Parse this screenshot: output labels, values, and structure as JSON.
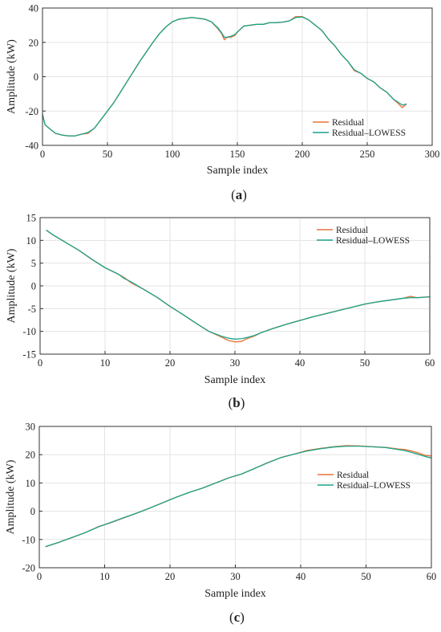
{
  "chart_data": [
    {
      "type": "line",
      "caption_pre": "(",
      "caption_letter": "a",
      "caption_post": ")",
      "xlabel": "Sample index",
      "ylabel": "Amplitude (kW)",
      "xlim": [
        0,
        300
      ],
      "ylim": [
        -40,
        40
      ],
      "xticks": [
        0,
        50,
        100,
        150,
        200,
        250,
        300
      ],
      "yticks": [
        -40,
        -20,
        0,
        20,
        40
      ],
      "grid": true,
      "legend_position": "bottom-right",
      "series": [
        {
          "name": "Residual",
          "color": "#e8743b",
          "x": [
            0,
            2,
            5,
            10,
            15,
            20,
            25,
            30,
            35,
            40,
            45,
            50,
            55,
            60,
            65,
            70,
            75,
            80,
            85,
            90,
            95,
            100,
            105,
            110,
            115,
            120,
            125,
            130,
            135,
            138,
            140,
            142,
            145,
            148,
            150,
            155,
            160,
            165,
            170,
            175,
            180,
            185,
            190,
            195,
            200,
            205,
            210,
            215,
            220,
            225,
            230,
            235,
            240,
            245,
            250,
            255,
            260,
            265,
            270,
            273,
            275,
            277,
            280
          ],
          "values": [
            -22,
            -28,
            -30,
            -33,
            -34,
            -34.5,
            -34.5,
            -33.5,
            -33,
            -30,
            -25,
            -20,
            -15,
            -9,
            -3,
            3,
            9,
            14.5,
            20,
            25,
            29,
            32,
            33.5,
            34,
            34.5,
            34,
            33.5,
            32,
            28,
            25,
            21.5,
            23,
            23,
            24,
            26,
            29.5,
            30,
            30.5,
            30.5,
            31.5,
            31.5,
            31.8,
            32.5,
            35,
            35,
            33,
            30,
            27,
            22,
            18,
            13,
            9,
            3.5,
            2,
            -1,
            -3,
            -6.5,
            -9,
            -13,
            -15,
            -16.5,
            -18,
            -16
          ]
        },
        {
          "name": "Residual–LOWESS",
          "color": "#1aa489",
          "x": [
            0,
            2,
            5,
            10,
            15,
            20,
            25,
            30,
            35,
            40,
            45,
            50,
            55,
            60,
            65,
            70,
            75,
            80,
            85,
            90,
            95,
            100,
            105,
            110,
            115,
            120,
            125,
            130,
            135,
            138,
            140,
            142,
            145,
            148,
            150,
            155,
            160,
            165,
            170,
            175,
            180,
            185,
            190,
            195,
            200,
            205,
            210,
            215,
            220,
            225,
            230,
            235,
            240,
            245,
            250,
            255,
            260,
            265,
            270,
            273,
            275,
            277,
            280
          ],
          "values": [
            -22,
            -28,
            -30,
            -33,
            -34,
            -34.5,
            -34.5,
            -33.5,
            -32.5,
            -30,
            -25,
            -20,
            -15,
            -9,
            -3,
            3,
            9,
            14.5,
            20,
            25,
            29,
            32,
            33.5,
            34,
            34.5,
            34,
            33.5,
            32,
            28.5,
            25.5,
            23,
            23,
            23.5,
            24.5,
            26,
            29.5,
            30,
            30.5,
            30.5,
            31.5,
            31.5,
            31.8,
            32.5,
            34.5,
            34.8,
            33,
            30,
            27,
            22,
            18,
            13,
            9,
            4,
            2,
            -1,
            -3,
            -6.5,
            -9,
            -13,
            -14.5,
            -15.5,
            -16.5,
            -16
          ]
        }
      ]
    },
    {
      "type": "line",
      "caption_pre": "(",
      "caption_letter": "b",
      "caption_post": ")",
      "xlabel": "Sample index",
      "ylabel": "Amplitude (kW)",
      "xlim": [
        0,
        60
      ],
      "ylim": [
        -15,
        15
      ],
      "xticks": [
        0,
        10,
        20,
        30,
        40,
        50,
        60
      ],
      "yticks": [
        -15,
        -10,
        -5,
        0,
        5,
        10,
        15
      ],
      "grid": true,
      "legend_position": "top-right",
      "series": [
        {
          "name": "Residual",
          "color": "#e8743b",
          "x": [
            1,
            2,
            4,
            6,
            8,
            10,
            12,
            13,
            14,
            16,
            18,
            20,
            22,
            24,
            26,
            28,
            29,
            30,
            31,
            32,
            33,
            34,
            36,
            38,
            40,
            42,
            44,
            46,
            48,
            50,
            52,
            54,
            56,
            57,
            58,
            60
          ],
          "values": [
            12.2,
            11.2,
            9.5,
            7.8,
            5.8,
            4,
            2.6,
            1.8,
            0.7,
            -0.8,
            -2.5,
            -4.5,
            -6.3,
            -8.2,
            -10,
            -11.3,
            -12,
            -12.3,
            -12.2,
            -11.5,
            -11,
            -10.3,
            -9.3,
            -8.4,
            -7.6,
            -6.8,
            -6.1,
            -5.4,
            -4.7,
            -4,
            -3.5,
            -3.1,
            -2.7,
            -2.3,
            -2.6,
            -2.4
          ]
        },
        {
          "name": "Residual–LOWESS",
          "color": "#1aa489",
          "x": [
            1,
            2,
            4,
            6,
            8,
            10,
            12,
            13,
            14,
            16,
            18,
            20,
            22,
            24,
            26,
            28,
            29,
            30,
            31,
            32,
            33,
            34,
            36,
            38,
            40,
            42,
            44,
            46,
            48,
            50,
            52,
            54,
            56,
            57,
            58,
            60
          ],
          "values": [
            12.2,
            11.2,
            9.5,
            7.8,
            5.8,
            4,
            2.6,
            1.6,
            0.9,
            -0.8,
            -2.5,
            -4.5,
            -6.3,
            -8.2,
            -10,
            -11.1,
            -11.5,
            -11.7,
            -11.6,
            -11.3,
            -10.9,
            -10.3,
            -9.3,
            -8.4,
            -7.6,
            -6.8,
            -6.1,
            -5.4,
            -4.7,
            -4,
            -3.5,
            -3.1,
            -2.7,
            -2.6,
            -2.6,
            -2.4
          ]
        }
      ]
    },
    {
      "type": "line",
      "caption_pre": "(",
      "caption_letter": "c",
      "caption_post": ")",
      "xlabel": "Sample index",
      "ylabel": "Amplitude (kW)",
      "xlim": [
        0,
        60
      ],
      "ylim": [
        -20,
        30
      ],
      "xticks": [
        0,
        10,
        20,
        30,
        40,
        50,
        60
      ],
      "yticks": [
        -20,
        -10,
        0,
        10,
        20,
        30
      ],
      "grid": true,
      "legend_position": "center-right",
      "series": [
        {
          "name": "Residual",
          "color": "#e8743b",
          "x": [
            1,
            3,
            5,
            7,
            9,
            11,
            13,
            15,
            17,
            19,
            21,
            23,
            25,
            27,
            29,
            31,
            33,
            35,
            37,
            39,
            41,
            43,
            45,
            47,
            49,
            51,
            53,
            55,
            56,
            57,
            58,
            59,
            60
          ],
          "values": [
            -12.5,
            -11,
            -9.3,
            -7.6,
            -5.5,
            -4,
            -2.3,
            -0.6,
            1.2,
            3.1,
            5,
            6.7,
            8.2,
            10,
            11.8,
            13.2,
            15.2,
            17.2,
            19,
            20.2,
            21.5,
            22.2,
            22.8,
            23.2,
            23.1,
            22.8,
            22.6,
            22,
            21.8,
            21.3,
            20.6,
            19.8,
            19.5
          ]
        },
        {
          "name": "Residual–LOWESS",
          "color": "#1aa489",
          "x": [
            1,
            3,
            5,
            7,
            9,
            11,
            13,
            15,
            17,
            19,
            21,
            23,
            25,
            27,
            29,
            31,
            33,
            35,
            37,
            39,
            41,
            43,
            45,
            47,
            49,
            51,
            53,
            55,
            56,
            57,
            58,
            59,
            60
          ],
          "values": [
            -12.5,
            -11,
            -9.3,
            -7.6,
            -5.6,
            -3.9,
            -2.2,
            -0.6,
            1.2,
            3.1,
            5,
            6.7,
            8.2,
            10,
            11.8,
            13.2,
            15.2,
            17.2,
            19,
            20.2,
            21.3,
            22.1,
            22.7,
            23,
            23,
            22.8,
            22.5,
            21.8,
            21.4,
            20.8,
            20.1,
            19.4,
            18.8
          ]
        }
      ]
    }
  ]
}
